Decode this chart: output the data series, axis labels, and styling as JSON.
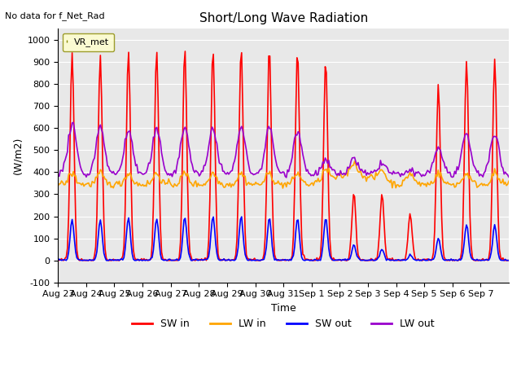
{
  "title": "Short/Long Wave Radiation",
  "xlabel": "Time",
  "ylabel": "(W/m2)",
  "ylim": [
    -100,
    1050
  ],
  "yticks": [
    -100,
    0,
    100,
    200,
    300,
    400,
    500,
    600,
    700,
    800,
    900,
    1000
  ],
  "top_left_text": "No data for f_Net_Rad",
  "legend_label_text": "VR_met",
  "xtick_labels": [
    "Aug 23",
    "Aug 24",
    "Aug 25",
    "Aug 26",
    "Aug 27",
    "Aug 28",
    "Aug 29",
    "Aug 30",
    "Aug 31",
    "Sep 1",
    "Sep 2",
    "Sep 3",
    "Sep 4",
    "Sep 5",
    "Sep 6",
    "Sep 7"
  ],
  "colors": {
    "SW_in": "#ff0000",
    "LW_in": "#ffa500",
    "SW_out": "#0000ff",
    "LW_out": "#9900cc"
  },
  "line_width": 1.2,
  "background_color": "#e8e8e8",
  "legend_entries": [
    "SW in",
    "LW in",
    "SW out",
    "LW out"
  ],
  "figsize": [
    6.4,
    4.8
  ],
  "dpi": 100
}
